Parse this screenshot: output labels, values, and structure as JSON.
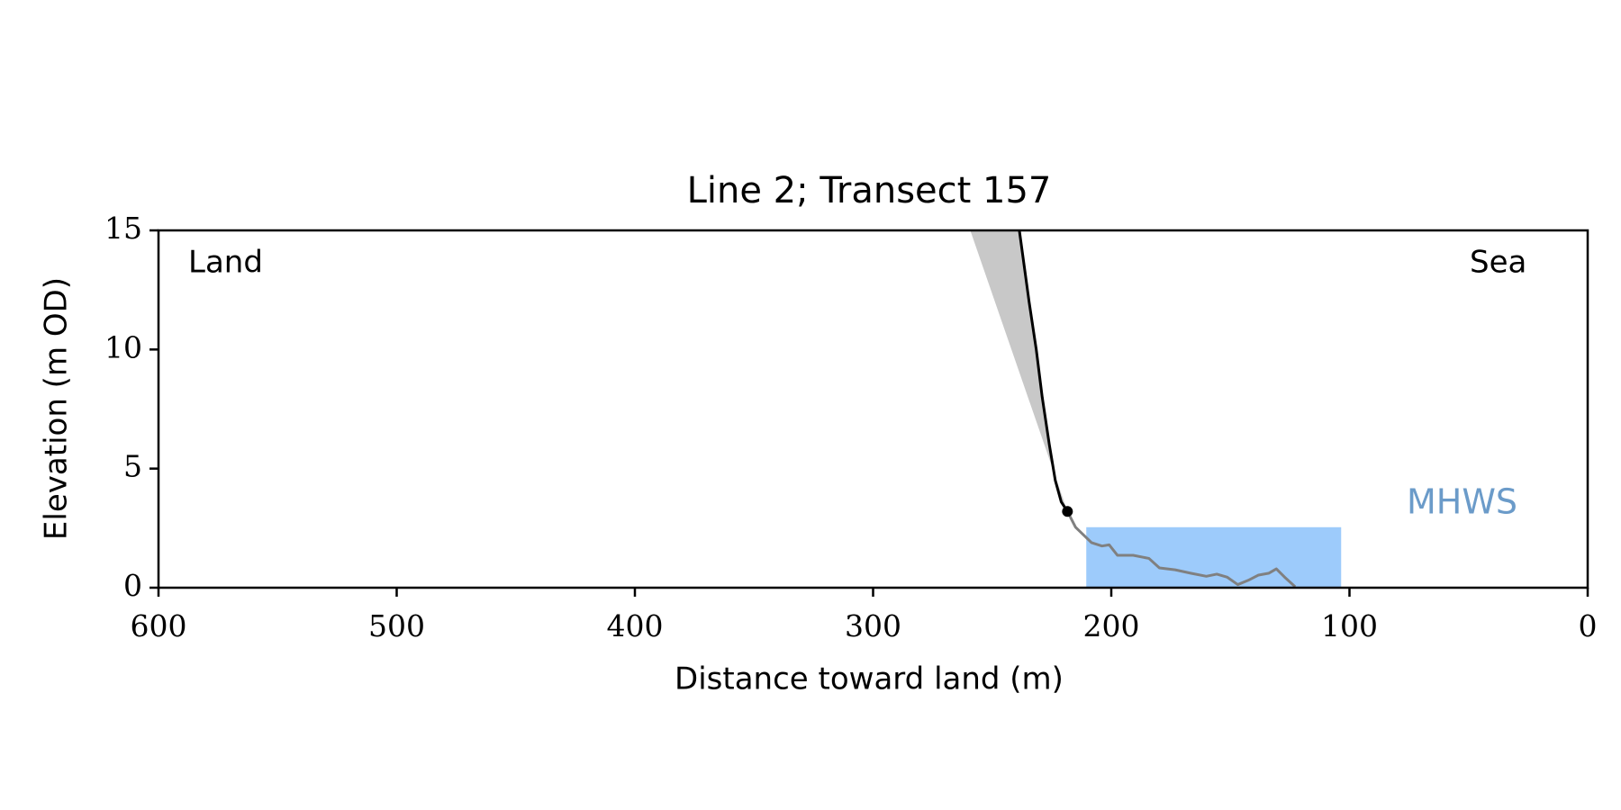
{
  "chart_data": {
    "type": "line",
    "title": "Line 2; Transect 157",
    "xlabel": "Distance toward land (m)",
    "ylabel": "Elevation (m OD)",
    "xlim": [
      600,
      0
    ],
    "ylim": [
      0,
      15
    ],
    "xticks": [
      600,
      500,
      400,
      300,
      200,
      100,
      0
    ],
    "yticks": [
      0,
      5,
      10,
      15
    ],
    "annotations": [
      "Land",
      "Sea"
    ],
    "shaded_region": {
      "color": "#c8c8c8",
      "x": [
        259.2,
        238.6,
        234.5,
        231.5,
        229,
        226,
        223.5,
        221,
        218.4
      ],
      "y": [
        15,
        15,
        12,
        10,
        8,
        6,
        4.5,
        3.6,
        3.2
      ]
    },
    "band": {
      "label": "MHWS",
      "color": "#9dcbfb",
      "label_color": "#6b9bc9",
      "x": [
        210.5,
        103.5
      ],
      "y": [
        0,
        2.54
      ]
    },
    "series": [
      {
        "color": "#808080",
        "x": [
          218.4,
          215,
          208.3,
          203.9,
          200.9,
          197.4,
          190.8,
          184.2,
          179.8,
          173.2,
          166.7,
          160.1,
          155.7,
          151.3,
          146.9,
          142.5,
          138.2,
          133.8,
          130.7,
          127.2,
          122.8
        ],
        "y": [
          3.2,
          2.54,
          1.89,
          1.75,
          1.8,
          1.36,
          1.36,
          1.23,
          0.83,
          0.75,
          0.61,
          0.48,
          0.57,
          0.44,
          0.13,
          0.31,
          0.53,
          0.61,
          0.79,
          0.44,
          0.04
        ]
      },
      {
        "color": "#000000",
        "x": [
          238.6,
          234.5,
          231.5,
          229,
          226,
          223.5,
          221,
          218.4
        ],
        "y": [
          15,
          12,
          10,
          8,
          6,
          4.5,
          3.6,
          3.2
        ]
      }
    ],
    "point": {
      "x": 218.4,
      "y": 3.2,
      "color": "#000000"
    }
  }
}
